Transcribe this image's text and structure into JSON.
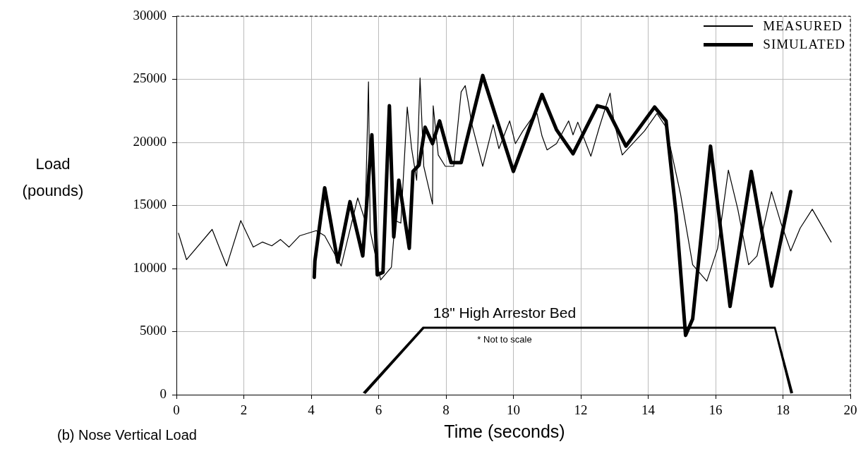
{
  "chart_data": {
    "type": "line",
    "xlabel": "Time (seconds)",
    "ylabel": "Load (pounds)",
    "xlim": [
      0,
      20
    ],
    "xticks": [
      0,
      2,
      4,
      6,
      8,
      10,
      12,
      14,
      16,
      18,
      20
    ],
    "ylim": [
      0,
      30000
    ],
    "yticks": [
      0,
      5000,
      10000,
      15000,
      20000,
      25000,
      30000
    ],
    "grid": true,
    "legend": "top right",
    "marker": "none",
    "line_style": "solid",
    "annotations": [
      "(b)  Nose Vertical Load",
      "18\" High Arrestor Bed",
      "* Not to scale"
    ],
    "series": [
      {
        "name": "MEASURED",
        "color": "#000000",
        "x": [
          0.06,
          0.3,
          1.06,
          1.49,
          1.91,
          2.28,
          2.55,
          2.83,
          3.09,
          3.34,
          3.66,
          4.15,
          4.4,
          4.89,
          5.38,
          5.6,
          5.7,
          5.75,
          6.06,
          6.38,
          6.49,
          6.66,
          6.85,
          6.98,
          7.13,
          7.23,
          7.34,
          7.6,
          7.62,
          7.77,
          7.98,
          8.23,
          8.45,
          8.57,
          8.66,
          8.77,
          9.09,
          9.4,
          9.57,
          9.89,
          10.06,
          10.28,
          10.57,
          10.7,
          10.85,
          11.0,
          11.28,
          11.64,
          11.77,
          11.91,
          12.3,
          12.55,
          12.87,
          12.98,
          13.23,
          13.47,
          13.89,
          14.26,
          14.53,
          14.96,
          15.32,
          15.74,
          16.06,
          16.38,
          16.66,
          16.98,
          17.23,
          17.66,
          17.94,
          18.23,
          18.51,
          18.87,
          19.43
        ],
        "values": [
          12800,
          10700,
          13100,
          10200,
          13800,
          11700,
          12100,
          11800,
          12300,
          11700,
          12600,
          13000,
          12600,
          10200,
          15600,
          13800,
          24800,
          13000,
          9100,
          10100,
          13800,
          13600,
          22800,
          19500,
          17000,
          25100,
          18100,
          15100,
          22900,
          19000,
          18100,
          18100,
          24000,
          24500,
          23200,
          21400,
          18100,
          21400,
          19500,
          21700,
          19900,
          20900,
          22000,
          22300,
          20500,
          19400,
          19900,
          21700,
          20600,
          21600,
          18900,
          21200,
          23900,
          21700,
          19000,
          19700,
          20900,
          22300,
          21200,
          15900,
          10300,
          9000,
          11600,
          17800,
          14700,
          10300,
          11000,
          16100,
          13600,
          11400,
          13200,
          14700,
          12100
        ]
      },
      {
        "name": "SIMULATED",
        "color": "#000000",
        "x": [
          4.09,
          4.11,
          4.4,
          4.79,
          5.15,
          5.53,
          5.8,
          5.96,
          6.13,
          6.32,
          6.45,
          6.6,
          6.91,
          7.02,
          7.2,
          7.38,
          7.6,
          7.81,
          8.15,
          8.45,
          9.09,
          10.0,
          10.85,
          11.28,
          11.77,
          12.49,
          12.77,
          13.34,
          14.19,
          14.53,
          14.83,
          15.11,
          15.32,
          15.85,
          16.43,
          17.06,
          17.66,
          18.23
        ],
        "values": [
          9300,
          10600,
          16400,
          10500,
          15300,
          11000,
          20600,
          9500,
          9700,
          22900,
          12500,
          17000,
          11600,
          17700,
          18200,
          21200,
          19900,
          21700,
          18400,
          18400,
          25300,
          17700,
          23800,
          21000,
          19100,
          22900,
          22700,
          19700,
          22800,
          21700,
          14300,
          4700,
          6000,
          19700,
          7000,
          17700,
          8600,
          16100
        ]
      }
    ]
  }
}
